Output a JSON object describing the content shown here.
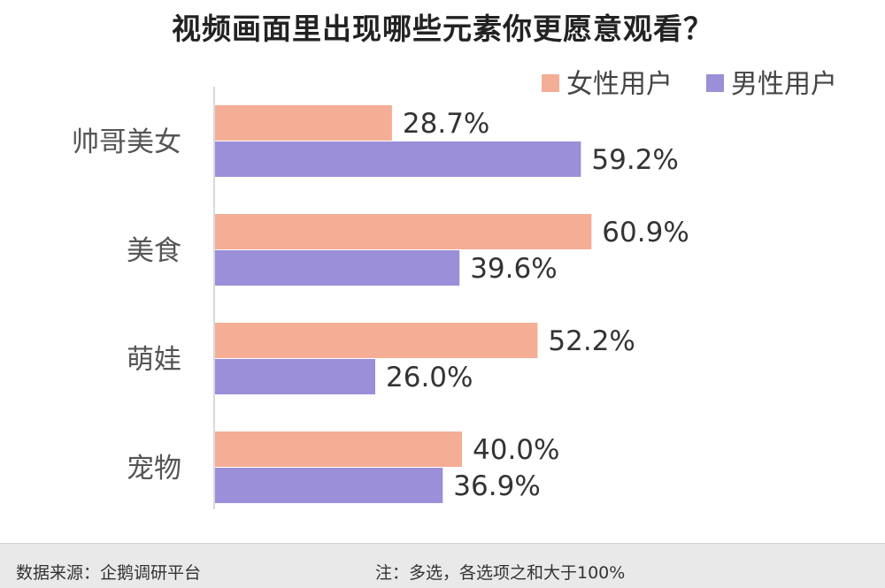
{
  "chart_data": {
    "type": "bar",
    "orientation": "horizontal",
    "title": "视频画面里出现哪些元素你更愿意观看？",
    "categories": [
      "帅哥美女",
      "美食",
      "萌娃",
      "宠物"
    ],
    "series": [
      {
        "name": "女性用户",
        "color": "#f4ae96",
        "values": [
          28.7,
          60.9,
          52.2,
          40.0
        ],
        "labels": [
          "28.7%",
          "60.9%",
          "52.2%",
          "40.0%"
        ]
      },
      {
        "name": "男性用户",
        "color": "#9a8fd8",
        "values": [
          59.2,
          39.6,
          26.0,
          36.9
        ],
        "labels": [
          "59.2%",
          "39.6%",
          "26.0%",
          "36.9%"
        ]
      }
    ],
    "xlim": [
      0,
      100
    ],
    "grid": false,
    "legend_position": "top-right"
  },
  "footer": {
    "source": "数据来源：企鹅调研平台",
    "note": "注：多选，各选项之和大于100%"
  }
}
